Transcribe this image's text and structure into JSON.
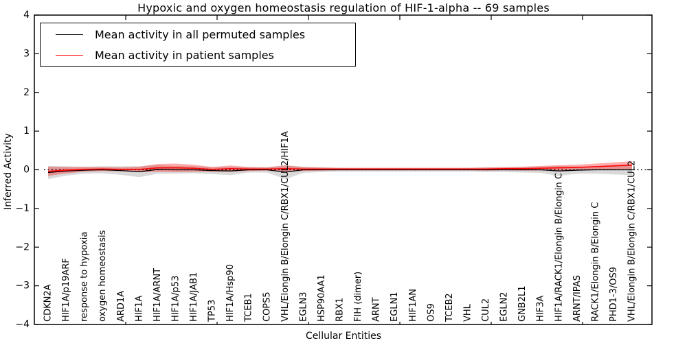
{
  "figure": {
    "title": "Hypoxic and oxygen homeostasis regulation of HIF-1-alpha -- 69 samples",
    "xlabel": "Cellular Entities",
    "ylabel": "Inferred Activity"
  },
  "legend": {
    "items": [
      {
        "label": "Mean activity in all permuted samples",
        "color": "#000000"
      },
      {
        "label": "Mean activity in patient samples",
        "color": "#ff0000"
      }
    ]
  },
  "chart_data": {
    "type": "line",
    "title": "Hypoxic and oxygen homeostasis regulation of HIF-1-alpha -- 69 samples",
    "xlabel": "Cellular Entities",
    "ylabel": "Inferred Activity",
    "ylim": [
      -4,
      4
    ],
    "yticks": [
      -4,
      -3,
      -2,
      -1,
      0,
      1,
      2,
      3,
      4
    ],
    "grid": false,
    "legend_position": "upper left",
    "zero_reference_line": 0,
    "categories": [
      "CDKN2A",
      "HIF1A/p19ARF",
      "response to hypoxia",
      "oxygen homeostasis",
      "ARD1A",
      "HIF1A",
      "HIF1A/ARNT",
      "HIF1A/p53",
      "HIF1A/JAB1",
      "TP53",
      "HIF1A/Hsp90",
      "TCEB1",
      "COPS5",
      "VHL/Elongin B/Elongin C/RBX1/CUL2/HIF1A",
      "EGLN3",
      "HSP90AA1",
      "RBX1",
      "FIH (dimer)",
      "ARNT",
      "EGLN1",
      "HIF1AN",
      "OS9",
      "TCEB2",
      "VHL",
      "CUL2",
      "EGLN2",
      "GNB2L1",
      "HIF3A",
      "HIF1A/RACK1/Elongin B/Elongin C",
      "ARNT/IPAS",
      "RACK1/Elongin B/Elongin C",
      "PHD1-3/OS9",
      "VHL/Elongin B/Elongin C/RBX1/CUL2"
    ],
    "series": [
      {
        "name": "Mean activity in all permuted samples",
        "color": "#000000",
        "band_color": "rgba(130,130,130,0.30)",
        "values": [
          -0.07,
          -0.03,
          -0.01,
          0,
          -0.02,
          -0.05,
          0.01,
          0,
          0,
          -0.02,
          -0.03,
          0,
          0,
          -0.06,
          0,
          0,
          0,
          0,
          0,
          0,
          0,
          0,
          0,
          0,
          0,
          0,
          0,
          0,
          -0.03,
          -0.01,
          0,
          0,
          0
        ],
        "band_halfwidth": [
          0.17,
          0.12,
          0.09,
          0.09,
          0.11,
          0.14,
          0.11,
          0.1,
          0.09,
          0.09,
          0.11,
          0.07,
          0.07,
          0.18,
          0.08,
          0.06,
          0.05,
          0.05,
          0.05,
          0.05,
          0.05,
          0.05,
          0.05,
          0.05,
          0.06,
          0.06,
          0.07,
          0.08,
          0.13,
          0.09,
          0.1,
          0.12,
          0.14
        ]
      },
      {
        "name": "Mean activity in patient samples",
        "color": "#ff0000",
        "band_color": "rgba(255,0,0,0.33)",
        "values": [
          -0.04,
          -0.01,
          0.01,
          0.02,
          0.01,
          0.01,
          0.05,
          0.05,
          0.04,
          0.01,
          0.03,
          0.02,
          0.02,
          0.03,
          0.02,
          0.02,
          0.02,
          0.02,
          0.02,
          0.02,
          0.02,
          0.02,
          0.02,
          0.02,
          0.02,
          0.03,
          0.03,
          0.04,
          0.05,
          0.06,
          0.08,
          0.1,
          0.12
        ],
        "band_halfwidth": [
          0.12,
          0.08,
          0.06,
          0.05,
          0.05,
          0.07,
          0.1,
          0.11,
          0.09,
          0.06,
          0.08,
          0.05,
          0.04,
          0.08,
          0.05,
          0.04,
          0.03,
          0.03,
          0.03,
          0.03,
          0.03,
          0.03,
          0.03,
          0.03,
          0.04,
          0.04,
          0.05,
          0.06,
          0.07,
          0.07,
          0.08,
          0.09,
          0.1
        ]
      }
    ]
  }
}
